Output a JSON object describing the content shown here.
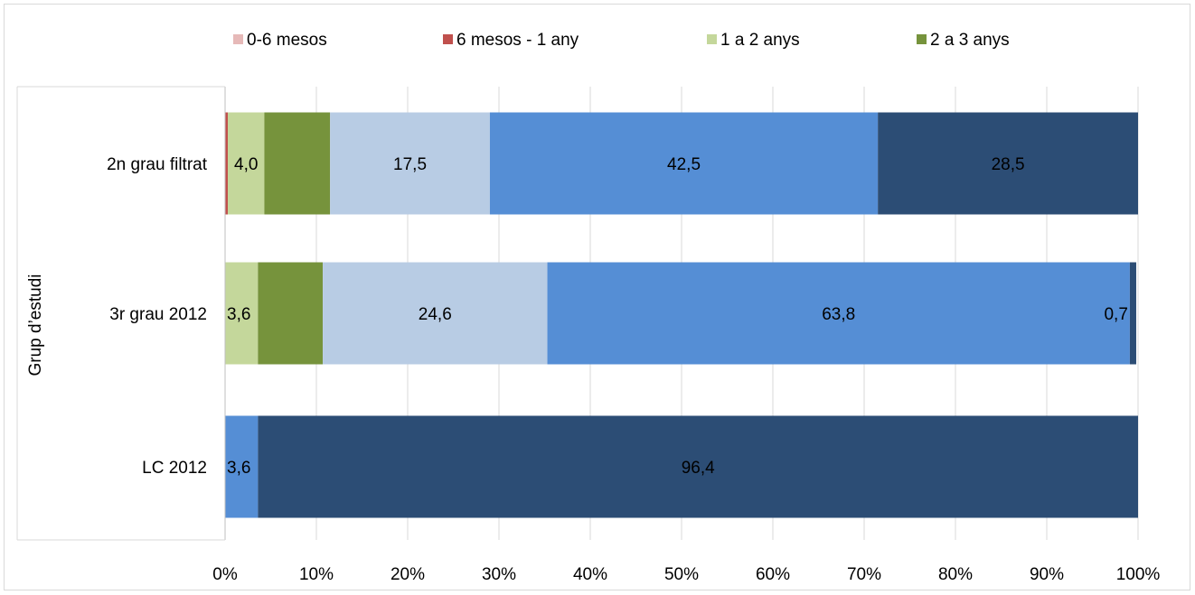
{
  "chart_data": {
    "type": "bar",
    "orientation": "horizontal",
    "stacked": "percent",
    "title": "",
    "ylabel": "Grup d’estudi",
    "xlabel": "",
    "xlim": [
      0,
      100
    ],
    "x_ticks": [
      "0%",
      "10%",
      "20%",
      "30%",
      "40%",
      "50%",
      "60%",
      "70%",
      "80%",
      "90%",
      "100%"
    ],
    "categories": [
      "2n grau filtrat",
      "3r grau 2012",
      "LC 2012"
    ],
    "series": [
      {
        "name": "0-6 mesos",
        "color": "#e6b9b8",
        "values": [
          0.0,
          0.0,
          0.0
        ],
        "labels": [
          "",
          "",
          ""
        ]
      },
      {
        "name": "6 mesos - 1 any",
        "color": "#c0504d",
        "values": [
          0.3,
          0.0,
          0.0
        ],
        "labels": [
          "",
          "",
          ""
        ]
      },
      {
        "name": "1 a 2 anys",
        "color": "#c4d79b",
        "values": [
          4.0,
          3.6,
          0.0
        ],
        "labels": [
          "4,0",
          "3,6",
          ""
        ]
      },
      {
        "name": "2 a 3 anys",
        "color": "#76933c",
        "values": [
          7.2,
          7.1,
          0.0
        ],
        "labels": [
          "",
          "",
          ""
        ]
      },
      {
        "name": "",
        "color": "#b8cce4",
        "values": [
          17.5,
          24.6,
          0.0
        ],
        "labels": [
          "17,5",
          "24,6",
          ""
        ]
      },
      {
        "name": "",
        "color": "#558ed5",
        "values": [
          42.5,
          63.8,
          3.6
        ],
        "labels": [
          "42,5",
          "63,8",
          "3,6"
        ]
      },
      {
        "name": "",
        "color": "#2c4d75",
        "values": [
          28.5,
          0.7,
          96.4
        ],
        "labels": [
          "28,5",
          "0,7",
          "96,4"
        ]
      }
    ],
    "legend": {
      "position": "top",
      "entries": [
        "0-6 mesos",
        "6 mesos - 1 any",
        "1 a 2 anys",
        "2 a 3 anys"
      ]
    },
    "grid": true
  }
}
